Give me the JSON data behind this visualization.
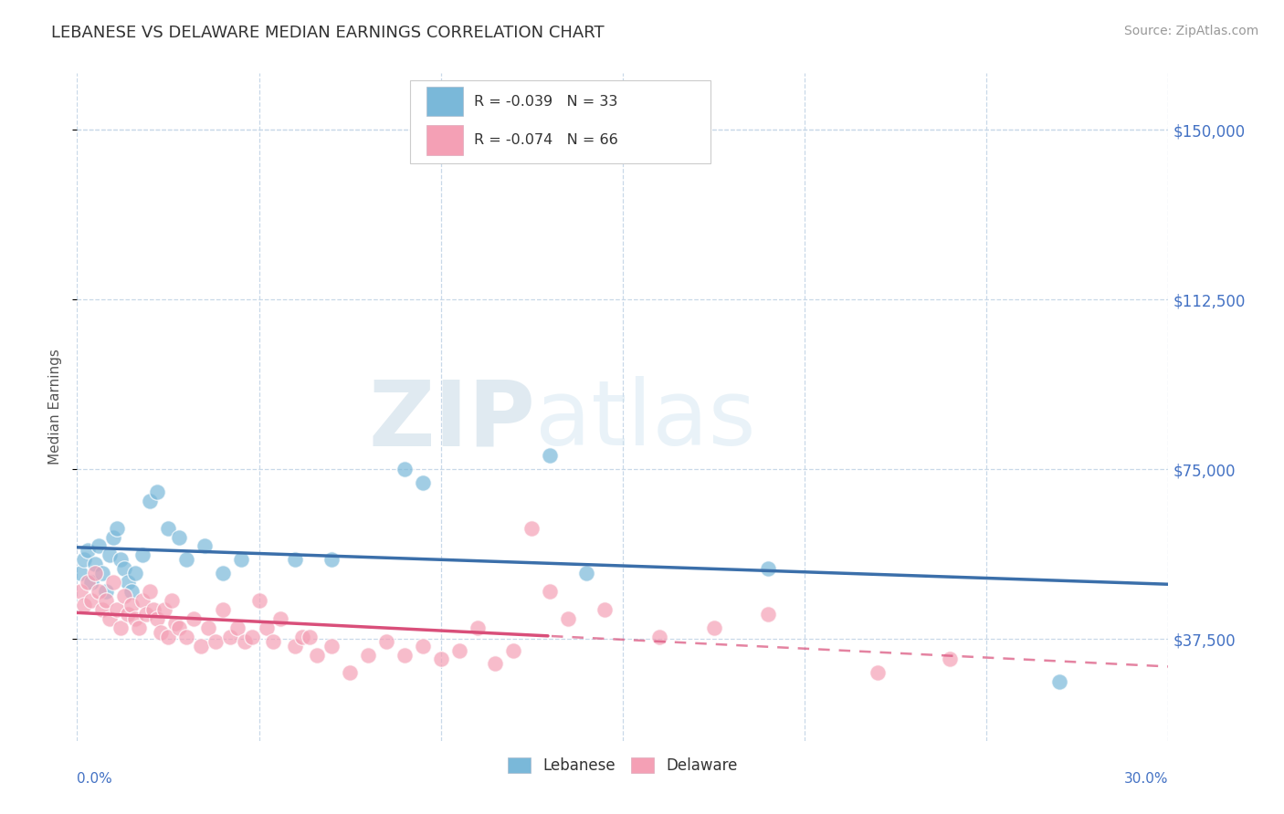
{
  "title": "LEBANESE VS DELAWARE MEDIAN EARNINGS CORRELATION CHART",
  "source": "Source: ZipAtlas.com",
  "ylabel": "Median Earnings",
  "xlim": [
    0.0,
    0.3
  ],
  "ylim": [
    15000,
    162500
  ],
  "ytick_vals": [
    37500,
    75000,
    112500,
    150000
  ],
  "ytick_labels": [
    "$37,500",
    "$75,000",
    "$112,500",
    "$150,000"
  ],
  "blue_scatter_color": "#7ab8d9",
  "pink_scatter_color": "#f4a0b5",
  "blue_line_color": "#3b6faa",
  "pink_line_color": "#d94f7a",
  "blue_line_solid_end": 0.3,
  "pink_line_solid_end": 0.13,
  "lebanese_points": [
    [
      0.001,
      52000
    ],
    [
      0.002,
      55000
    ],
    [
      0.003,
      57000
    ],
    [
      0.004,
      50000
    ],
    [
      0.005,
      54000
    ],
    [
      0.006,
      58000
    ],
    [
      0.007,
      52000
    ],
    [
      0.008,
      48000
    ],
    [
      0.009,
      56000
    ],
    [
      0.01,
      60000
    ],
    [
      0.011,
      62000
    ],
    [
      0.012,
      55000
    ],
    [
      0.013,
      53000
    ],
    [
      0.014,
      50000
    ],
    [
      0.015,
      48000
    ],
    [
      0.016,
      52000
    ],
    [
      0.018,
      56000
    ],
    [
      0.02,
      68000
    ],
    [
      0.022,
      70000
    ],
    [
      0.025,
      62000
    ],
    [
      0.028,
      60000
    ],
    [
      0.03,
      55000
    ],
    [
      0.035,
      58000
    ],
    [
      0.04,
      52000
    ],
    [
      0.045,
      55000
    ],
    [
      0.06,
      55000
    ],
    [
      0.07,
      55000
    ],
    [
      0.09,
      75000
    ],
    [
      0.095,
      72000
    ],
    [
      0.13,
      78000
    ],
    [
      0.14,
      52000
    ],
    [
      0.19,
      53000
    ],
    [
      0.27,
      28000
    ]
  ],
  "delaware_points": [
    [
      0.001,
      48000
    ],
    [
      0.002,
      45000
    ],
    [
      0.003,
      50000
    ],
    [
      0.004,
      46000
    ],
    [
      0.005,
      52000
    ],
    [
      0.006,
      48000
    ],
    [
      0.007,
      44000
    ],
    [
      0.008,
      46000
    ],
    [
      0.009,
      42000
    ],
    [
      0.01,
      50000
    ],
    [
      0.011,
      44000
    ],
    [
      0.012,
      40000
    ],
    [
      0.013,
      47000
    ],
    [
      0.014,
      43000
    ],
    [
      0.015,
      45000
    ],
    [
      0.016,
      42000
    ],
    [
      0.017,
      40000
    ],
    [
      0.018,
      46000
    ],
    [
      0.019,
      43000
    ],
    [
      0.02,
      48000
    ],
    [
      0.021,
      44000
    ],
    [
      0.022,
      42000
    ],
    [
      0.023,
      39000
    ],
    [
      0.024,
      44000
    ],
    [
      0.025,
      38000
    ],
    [
      0.026,
      46000
    ],
    [
      0.027,
      41000
    ],
    [
      0.028,
      40000
    ],
    [
      0.03,
      38000
    ],
    [
      0.032,
      42000
    ],
    [
      0.034,
      36000
    ],
    [
      0.036,
      40000
    ],
    [
      0.038,
      37000
    ],
    [
      0.04,
      44000
    ],
    [
      0.042,
      38000
    ],
    [
      0.044,
      40000
    ],
    [
      0.046,
      37000
    ],
    [
      0.048,
      38000
    ],
    [
      0.05,
      46000
    ],
    [
      0.052,
      40000
    ],
    [
      0.054,
      37000
    ],
    [
      0.056,
      42000
    ],
    [
      0.06,
      36000
    ],
    [
      0.062,
      38000
    ],
    [
      0.064,
      38000
    ],
    [
      0.066,
      34000
    ],
    [
      0.07,
      36000
    ],
    [
      0.075,
      30000
    ],
    [
      0.08,
      34000
    ],
    [
      0.085,
      37000
    ],
    [
      0.09,
      34000
    ],
    [
      0.095,
      36000
    ],
    [
      0.1,
      33000
    ],
    [
      0.105,
      35000
    ],
    [
      0.11,
      40000
    ],
    [
      0.115,
      32000
    ],
    [
      0.12,
      35000
    ],
    [
      0.125,
      62000
    ],
    [
      0.13,
      48000
    ],
    [
      0.135,
      42000
    ],
    [
      0.145,
      44000
    ],
    [
      0.16,
      38000
    ],
    [
      0.175,
      40000
    ],
    [
      0.19,
      43000
    ],
    [
      0.22,
      30000
    ],
    [
      0.24,
      33000
    ]
  ]
}
